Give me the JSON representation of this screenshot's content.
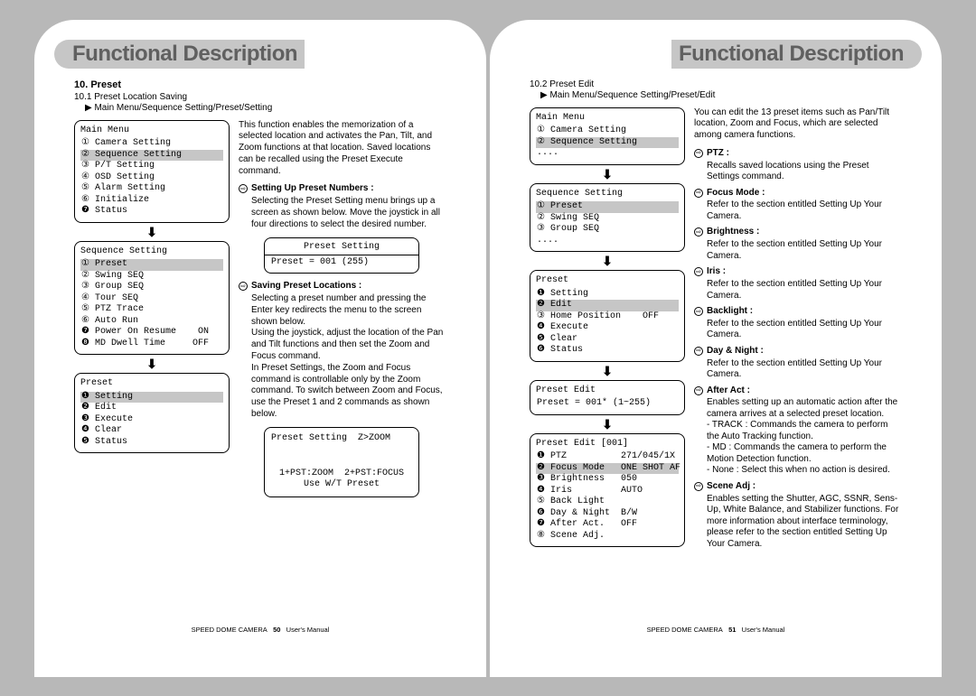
{
  "colors": {
    "page_bg": "#ffffff",
    "outer_bg": "#b8b8b8",
    "pill_bg": "#c6c6c6",
    "title_color": "#606060",
    "highlight_bg": "#c6c6c6",
    "text_color": "#000000"
  },
  "left_page": {
    "title": "Functional Description",
    "section": "10. Preset",
    "sub1": "10.1 Preset Location Saving",
    "breadcrumb": "▶ Main Menu/Sequence Setting/Preset/Setting",
    "intro_para": "This function enables the memorization of a selected location and activates the Pan, Tilt, and Zoom functions at that location. Saved locations can be recalled using the Preset Execute command.",
    "bullet1_label": "Setting Up Preset Numbers :",
    "bullet1_body": "Selecting the Preset Setting menu brings up a screen as shown below. Move the joystick in all four directions to select the desired number.",
    "bullet2_label": "Saving Preset Locations :",
    "bullet2_body": "Selecting a preset number and pressing the Enter key redirects the menu to the screen shown below.\nUsing the joystick, adjust the location of the Pan and Tilt functions and then set the Zoom and Focus command.\nIn Preset Settings, the Zoom and Focus command is controllable only by the Zoom command. To switch between Zoom and Focus, use the Preset 1 and 2 commands as shown below.",
    "main_menu": {
      "title": "Main Menu",
      "rows": [
        {
          "text": "① Camera Setting",
          "hl": false
        },
        {
          "text": "② Sequence Setting",
          "hl": true
        },
        {
          "text": "③ P/T Setting",
          "hl": false
        },
        {
          "text": "④ OSD Setting",
          "hl": false
        },
        {
          "text": "⑤ Alarm Setting",
          "hl": false
        },
        {
          "text": "⑥ Initialize",
          "hl": false
        },
        {
          "text": "❼ Status",
          "hl": false
        }
      ]
    },
    "seq_setting": {
      "title": "Sequence Setting",
      "rows": [
        {
          "text": "① Preset",
          "hl": true
        },
        {
          "text": "② Swing SEQ",
          "hl": false
        },
        {
          "text": "③ Group SEQ",
          "hl": false
        },
        {
          "text": "④ Tour SEQ",
          "hl": false
        },
        {
          "text": "⑤ PTZ Trace",
          "hl": false
        },
        {
          "text": "⑥ Auto Run",
          "hl": false
        },
        {
          "text": "❼ Power On Resume    ON",
          "hl": false
        },
        {
          "text": "❽ MD Dwell Time     OFF",
          "hl": false
        }
      ]
    },
    "preset_menu": {
      "title": "Preset",
      "rows": [
        {
          "text": "❶ Setting",
          "hl": true
        },
        {
          "text": "❷ Edit",
          "hl": false
        },
        {
          "text": "❸ Execute",
          "hl": false
        },
        {
          "text": "❹ Clear",
          "hl": false
        },
        {
          "text": "❺ Status",
          "hl": false
        }
      ]
    },
    "preset_setting_box": {
      "heading": "Preset Setting",
      "body": "Preset = 001 (255)"
    },
    "zoom_box": {
      "line1": "Preset Setting  Z>ZOOM",
      "line2": "1+PST:ZOOM  2+PST:FOCUS",
      "line3": "Use W/T Preset"
    },
    "footer": {
      "product": "SPEED DOME CAMERA",
      "page": "50",
      "label": "User's Manual"
    }
  },
  "right_page": {
    "title": "Functional Description",
    "sub1": "10.2 Preset Edit",
    "breadcrumb": "▶ Main Menu/Sequence Setting/Preset/Edit",
    "intro_para": "You can edit the 13 preset items such as Pan/Tilt location, Zoom and Focus, which are selected among camera functions.",
    "main_menu": {
      "title": "Main Menu",
      "rows": [
        {
          "text": "① Camera Setting",
          "hl": false
        },
        {
          "text": "② Sequence Setting",
          "hl": true
        },
        {
          "text": "....",
          "hl": false
        }
      ]
    },
    "seq_setting": {
      "title": "Sequence Setting",
      "rows": [
        {
          "text": "① Preset",
          "hl": true
        },
        {
          "text": "② Swing SEQ",
          "hl": false
        },
        {
          "text": "③ Group SEQ",
          "hl": false
        },
        {
          "text": "....",
          "hl": false
        }
      ]
    },
    "preset_menu": {
      "title": "Preset",
      "rows": [
        {
          "text": "❶ Setting",
          "hl": false
        },
        {
          "text": "❷ Edit",
          "hl": true
        },
        {
          "text": "③ Home Position    OFF",
          "hl": false
        },
        {
          "text": "❹ Execute",
          "hl": false
        },
        {
          "text": "❺ Clear",
          "hl": false
        },
        {
          "text": "❻ Status",
          "hl": false
        }
      ]
    },
    "preset_edit_box": {
      "title": "Preset Edit",
      "body": "Preset = 001* (1~255)"
    },
    "preset_edit_detail": {
      "title": "Preset Edit     [001]",
      "rows": [
        {
          "text": "❶ PTZ          271/045/1X",
          "hl": false
        },
        {
          "text": "❷ Focus Mode   ONE SHOT AF",
          "hl": true
        },
        {
          "text": "❸ Brightness   050",
          "hl": false
        },
        {
          "text": "❹ Iris         AUTO",
          "hl": false
        },
        {
          "text": "⑤ Back Light",
          "hl": false
        },
        {
          "text": "❻ Day & Night  B/W",
          "hl": false
        },
        {
          "text": "❼ After Act.   OFF",
          "hl": false
        },
        {
          "text": "⑧ Scene Adj.",
          "hl": false
        }
      ]
    },
    "descriptions": [
      {
        "label": "PTZ :",
        "body": "Recalls saved locations using the Preset Settings command."
      },
      {
        "label": "Focus Mode :",
        "body": "Refer to the section entitled Setting Up Your Camera."
      },
      {
        "label": "Brightness :",
        "body": "Refer to the section entitled Setting Up Your Camera."
      },
      {
        "label": "Iris :",
        "body": "Refer to the section entitled Setting Up Your Camera."
      },
      {
        "label": "Backlight :",
        "body": "Refer to the section entitled Setting Up Your Camera."
      },
      {
        "label": "Day & Night :",
        "body": "Refer to the section entitled Setting Up Your Camera."
      },
      {
        "label": "After Act :",
        "body": "Enables setting up an automatic action after the camera arrives at a selected preset location.\n- TRACK : Commands the camera to perform the Auto Tracking function.\n- MD : Commands the camera to perform the Motion Detection function.\n- None : Select this when no action is desired."
      },
      {
        "label": "Scene Adj :",
        "body": "Enables setting the Shutter, AGC, SSNR, Sens-Up, White Balance, and Stabilizer functions. For more information about interface terminology, please refer to the section entitled Setting Up Your Camera."
      }
    ],
    "footer": {
      "product": "SPEED DOME CAMERA",
      "page": "51",
      "label": "User's Manual"
    }
  }
}
